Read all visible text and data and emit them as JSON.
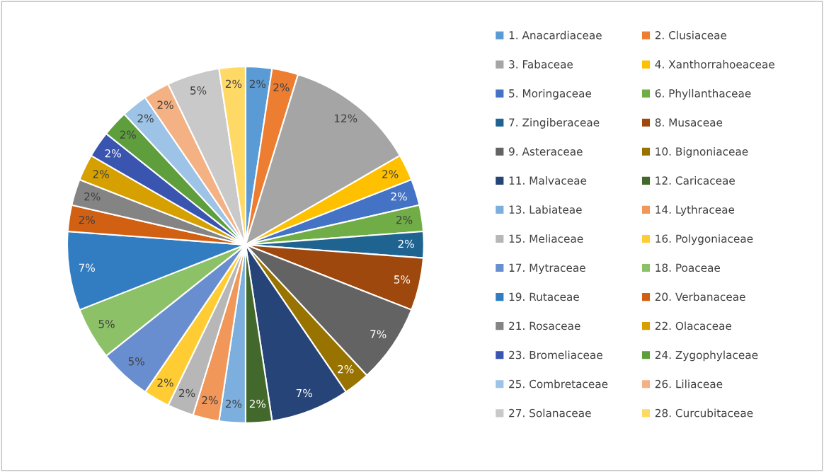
{
  "chart_data": {
    "type": "pie",
    "categories": [
      "1. Anacardiaceae",
      "2. Clusiaceae",
      "3. Fabaceae",
      "4. Xanthorrahoeaceae",
      "5. Moringaceae",
      "6. Phyllanthaceae",
      "7. Zingiberaceae",
      "8. Musaceae",
      "9. Asteraceae",
      "10. Bignoniaceae",
      "11. Malvaceae",
      "12. Caricaceae",
      "13. Labiateae",
      "14. Lythraceae",
      "15. Meliaceae",
      "16. Polygoniaceae",
      "17. Mytraceae",
      "18. Poaceae",
      "19. Rutaceae",
      "20. Verbanaceae",
      "21. Rosaceae",
      "22. Olacaceae",
      "23. Bromeliaceae",
      "24. Zygophylaceae",
      "25. Combretaceae",
      "26. Liliaceae",
      "27. Solanaceae",
      "28. Curcubitaceae"
    ],
    "values": [
      2.38,
      2.38,
      11.9,
      2.38,
      2.38,
      2.38,
      2.38,
      4.76,
      7.14,
      2.38,
      7.14,
      2.38,
      2.38,
      2.38,
      2.38,
      2.38,
      4.76,
      4.76,
      7.14,
      2.38,
      2.38,
      2.38,
      2.38,
      2.38,
      2.38,
      2.38,
      4.76,
      2.38
    ],
    "value_labels": [
      "2%",
      "2%",
      "12%",
      "2%",
      "2%",
      "2%",
      "2%",
      "5%",
      "7%",
      "2%",
      "7%",
      "2%",
      "2%",
      "2%",
      "2%",
      "2%",
      "5%",
      "5%",
      "7%",
      "2%",
      "2%",
      "2%",
      "2%",
      "2%",
      "2%",
      "2%",
      "5%",
      "2%"
    ],
    "colors": [
      "#5b9bd5",
      "#ed7d31",
      "#a5a5a5",
      "#ffc000",
      "#4472c4",
      "#70ad47",
      "#1f6390",
      "#9e480e",
      "#636363",
      "#997300",
      "#264478",
      "#43682b",
      "#7cafdd",
      "#f1975a",
      "#b7b7b7",
      "#ffcd33",
      "#698ed0",
      "#8cc168",
      "#327dc2",
      "#d26012",
      "#848484",
      "#d5a000",
      "#3a55b0",
      "#5e9e3c",
      "#9dc3e6",
      "#f4b183",
      "#c9c9c9",
      "#ffd966"
    ],
    "legend": "right"
  }
}
